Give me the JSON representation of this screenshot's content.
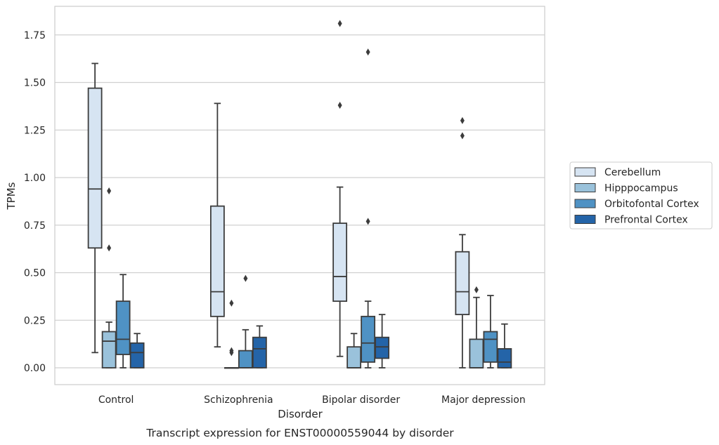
{
  "chart_data": {
    "type": "box",
    "caption": "Transcript expression for ENST00000559044 by disorder",
    "xlabel": "Disorder",
    "ylabel": "TPMs",
    "ylim": [
      -0.09,
      1.9
    ],
    "yticks": [
      "0.00",
      "0.25",
      "0.50",
      "0.75",
      "1.00",
      "1.25",
      "1.50",
      "1.75"
    ],
    "grid": true,
    "legend_position": "right",
    "categories": [
      "Control",
      "Schizophrenia",
      "Bipolar disorder",
      "Major depression"
    ],
    "series": [
      {
        "name": "Cerebellum",
        "color": "#d6e4f2",
        "boxes": [
          {
            "whisker_low": 0.08,
            "q1": 0.63,
            "median": 0.94,
            "q3": 1.47,
            "whisker_high": 1.6,
            "outliers": []
          },
          {
            "whisker_low": 0.11,
            "q1": 0.27,
            "median": 0.4,
            "q3": 0.85,
            "whisker_high": 1.39,
            "outliers": []
          },
          {
            "whisker_low": 0.06,
            "q1": 0.35,
            "median": 0.48,
            "q3": 0.76,
            "whisker_high": 0.95,
            "outliers": [
              1.38,
              1.81
            ]
          },
          {
            "whisker_low": 0.0,
            "q1": 0.28,
            "median": 0.4,
            "q3": 0.61,
            "whisker_high": 0.7,
            "outliers": [
              1.22,
              1.3
            ]
          }
        ]
      },
      {
        "name": "Hipppocampus",
        "color": "#9ac2db",
        "boxes": [
          {
            "whisker_low": 0.0,
            "q1": 0.0,
            "median": 0.14,
            "q3": 0.19,
            "whisker_high": 0.24,
            "outliers": [
              0.63,
              0.93
            ]
          },
          {
            "whisker_low": 0.0,
            "q1": 0.0,
            "median": 0.0,
            "q3": 0.0,
            "whisker_high": 0.0,
            "outliers": [
              0.08,
              0.09,
              0.34
            ]
          },
          {
            "whisker_low": 0.0,
            "q1": 0.0,
            "median": 0.0,
            "q3": 0.11,
            "whisker_high": 0.18,
            "outliers": []
          },
          {
            "whisker_low": 0.0,
            "q1": 0.0,
            "median": 0.0,
            "q3": 0.15,
            "whisker_high": 0.37,
            "outliers": [
              0.41
            ]
          }
        ]
      },
      {
        "name": "Orbitofontal Cortex",
        "color": "#4f92c4",
        "boxes": [
          {
            "whisker_low": 0.0,
            "q1": 0.07,
            "median": 0.15,
            "q3": 0.35,
            "whisker_high": 0.49,
            "outliers": []
          },
          {
            "whisker_low": 0.0,
            "q1": 0.0,
            "median": 0.0,
            "q3": 0.09,
            "whisker_high": 0.2,
            "outliers": [
              0.47
            ]
          },
          {
            "whisker_low": 0.0,
            "q1": 0.03,
            "median": 0.13,
            "q3": 0.27,
            "whisker_high": 0.35,
            "outliers": [
              0.77,
              1.66
            ]
          },
          {
            "whisker_low": 0.0,
            "q1": 0.03,
            "median": 0.15,
            "q3": 0.19,
            "whisker_high": 0.38,
            "outliers": []
          }
        ]
      },
      {
        "name": "Prefrontal Cortex",
        "color": "#2464a8",
        "boxes": [
          {
            "whisker_low": 0.0,
            "q1": 0.0,
            "median": 0.08,
            "q3": 0.13,
            "whisker_high": 0.18,
            "outliers": []
          },
          {
            "whisker_low": 0.0,
            "q1": 0.0,
            "median": 0.1,
            "q3": 0.16,
            "whisker_high": 0.22,
            "outliers": []
          },
          {
            "whisker_low": 0.0,
            "q1": 0.05,
            "median": 0.11,
            "q3": 0.16,
            "whisker_high": 0.28,
            "outliers": []
          },
          {
            "whisker_low": 0.0,
            "q1": 0.0,
            "median": 0.03,
            "q3": 0.1,
            "whisker_high": 0.23,
            "outliers": []
          }
        ]
      }
    ]
  }
}
